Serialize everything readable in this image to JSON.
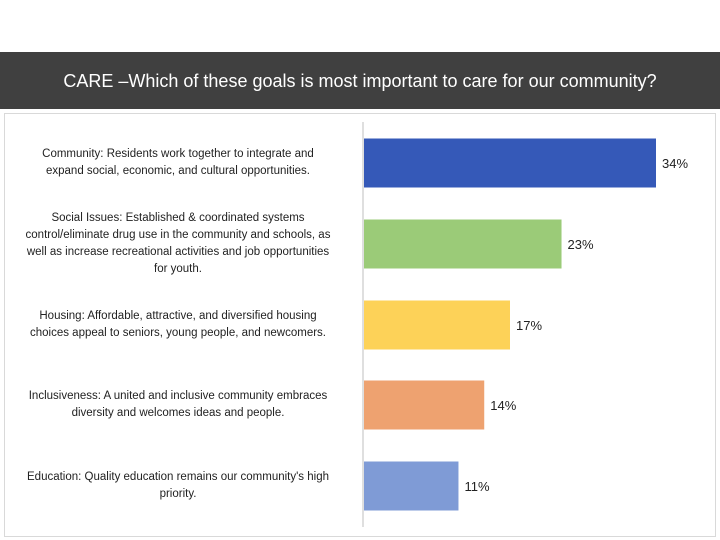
{
  "header": {
    "title": "CARE –Which of these goals is most important to care for our community?"
  },
  "chart_data": {
    "type": "bar",
    "orientation": "horizontal",
    "title": "CARE –Which of these goals is most important to care for our community?",
    "xlabel": "",
    "ylabel": "",
    "xlim": [
      0,
      40
    ],
    "grid": false,
    "legend": "none",
    "categories": [
      "Community: Residents work together to integrate and expand social, economic, and cultural opportunities.",
      "Social Issues: Established & coordinated systems control/eliminate drug use in the community and schools, as well as increase recreational activities and job opportunities for youth.",
      "Housing: Affordable, attractive, and diversified housing choices appeal to seniors, young people, and newcomers.",
      "Inclusiveness: A united and inclusive community embraces diversity and welcomes ideas and people.",
      "Education: Quality education remains our community's high priority."
    ],
    "category_lines": [
      [
        "Community: Residents work together to integrate and",
        "expand social, economic, and cultural opportunities."
      ],
      [
        "Social Issues: Established & coordinated systems",
        "control/eliminate drug use in the community and schools, as",
        "well as increase recreational activities and job opportunities",
        "for youth."
      ],
      [
        "Housing: Affordable, attractive, and diversified housing",
        "choices appeal to seniors, young people, and newcomers."
      ],
      [
        "Inclusiveness: A united and inclusive community embraces",
        "diversity and welcomes ideas and people."
      ],
      [
        "Education: Quality education remains our community's high",
        "priority."
      ]
    ],
    "values": [
      34,
      23,
      17,
      14,
      11
    ],
    "value_labels": [
      "34%",
      "23%",
      "17%",
      "14%",
      "11%"
    ],
    "colors": [
      "#3559b8",
      "#9bcb78",
      "#fdd258",
      "#eea270",
      "#7f9bd6"
    ]
  }
}
